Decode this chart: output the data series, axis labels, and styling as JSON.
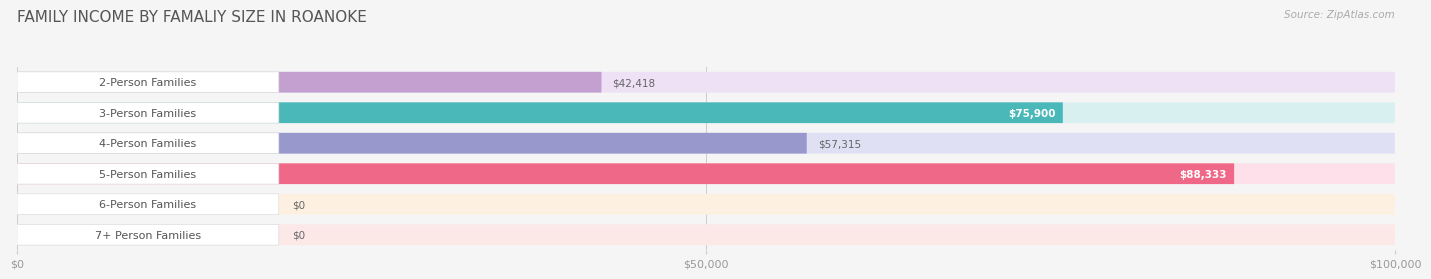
{
  "title": "FAMILY INCOME BY FAMALIY SIZE IN ROANOKE",
  "source": "Source: ZipAtlas.com",
  "categories": [
    "2-Person Families",
    "3-Person Families",
    "4-Person Families",
    "5-Person Families",
    "6-Person Families",
    "7+ Person Families"
  ],
  "values": [
    42418,
    75900,
    57315,
    88333,
    0,
    0
  ],
  "bar_colors": [
    "#c4a0d0",
    "#4ab8b8",
    "#9898cc",
    "#f06888",
    "#f5c090",
    "#f0a0a0"
  ],
  "bar_bg_colors": [
    "#eee0f5",
    "#d8f0f0",
    "#e0e0f5",
    "#fde0ea",
    "#fdf0e0",
    "#fde8e8"
  ],
  "value_inside": [
    false,
    true,
    false,
    true,
    false,
    false
  ],
  "value_labels": [
    "$42,418",
    "$75,900",
    "$57,315",
    "$88,333",
    "$0",
    "$0"
  ],
  "xmax": 100000,
  "xticks": [
    0,
    50000,
    100000
  ],
  "xtick_labels": [
    "$0",
    "$50,000",
    "$100,000"
  ],
  "background_color": "#f5f5f5",
  "bar_height": 0.68,
  "title_fontsize": 11,
  "label_fontsize": 8,
  "value_fontsize": 7.5,
  "source_fontsize": 7.5
}
